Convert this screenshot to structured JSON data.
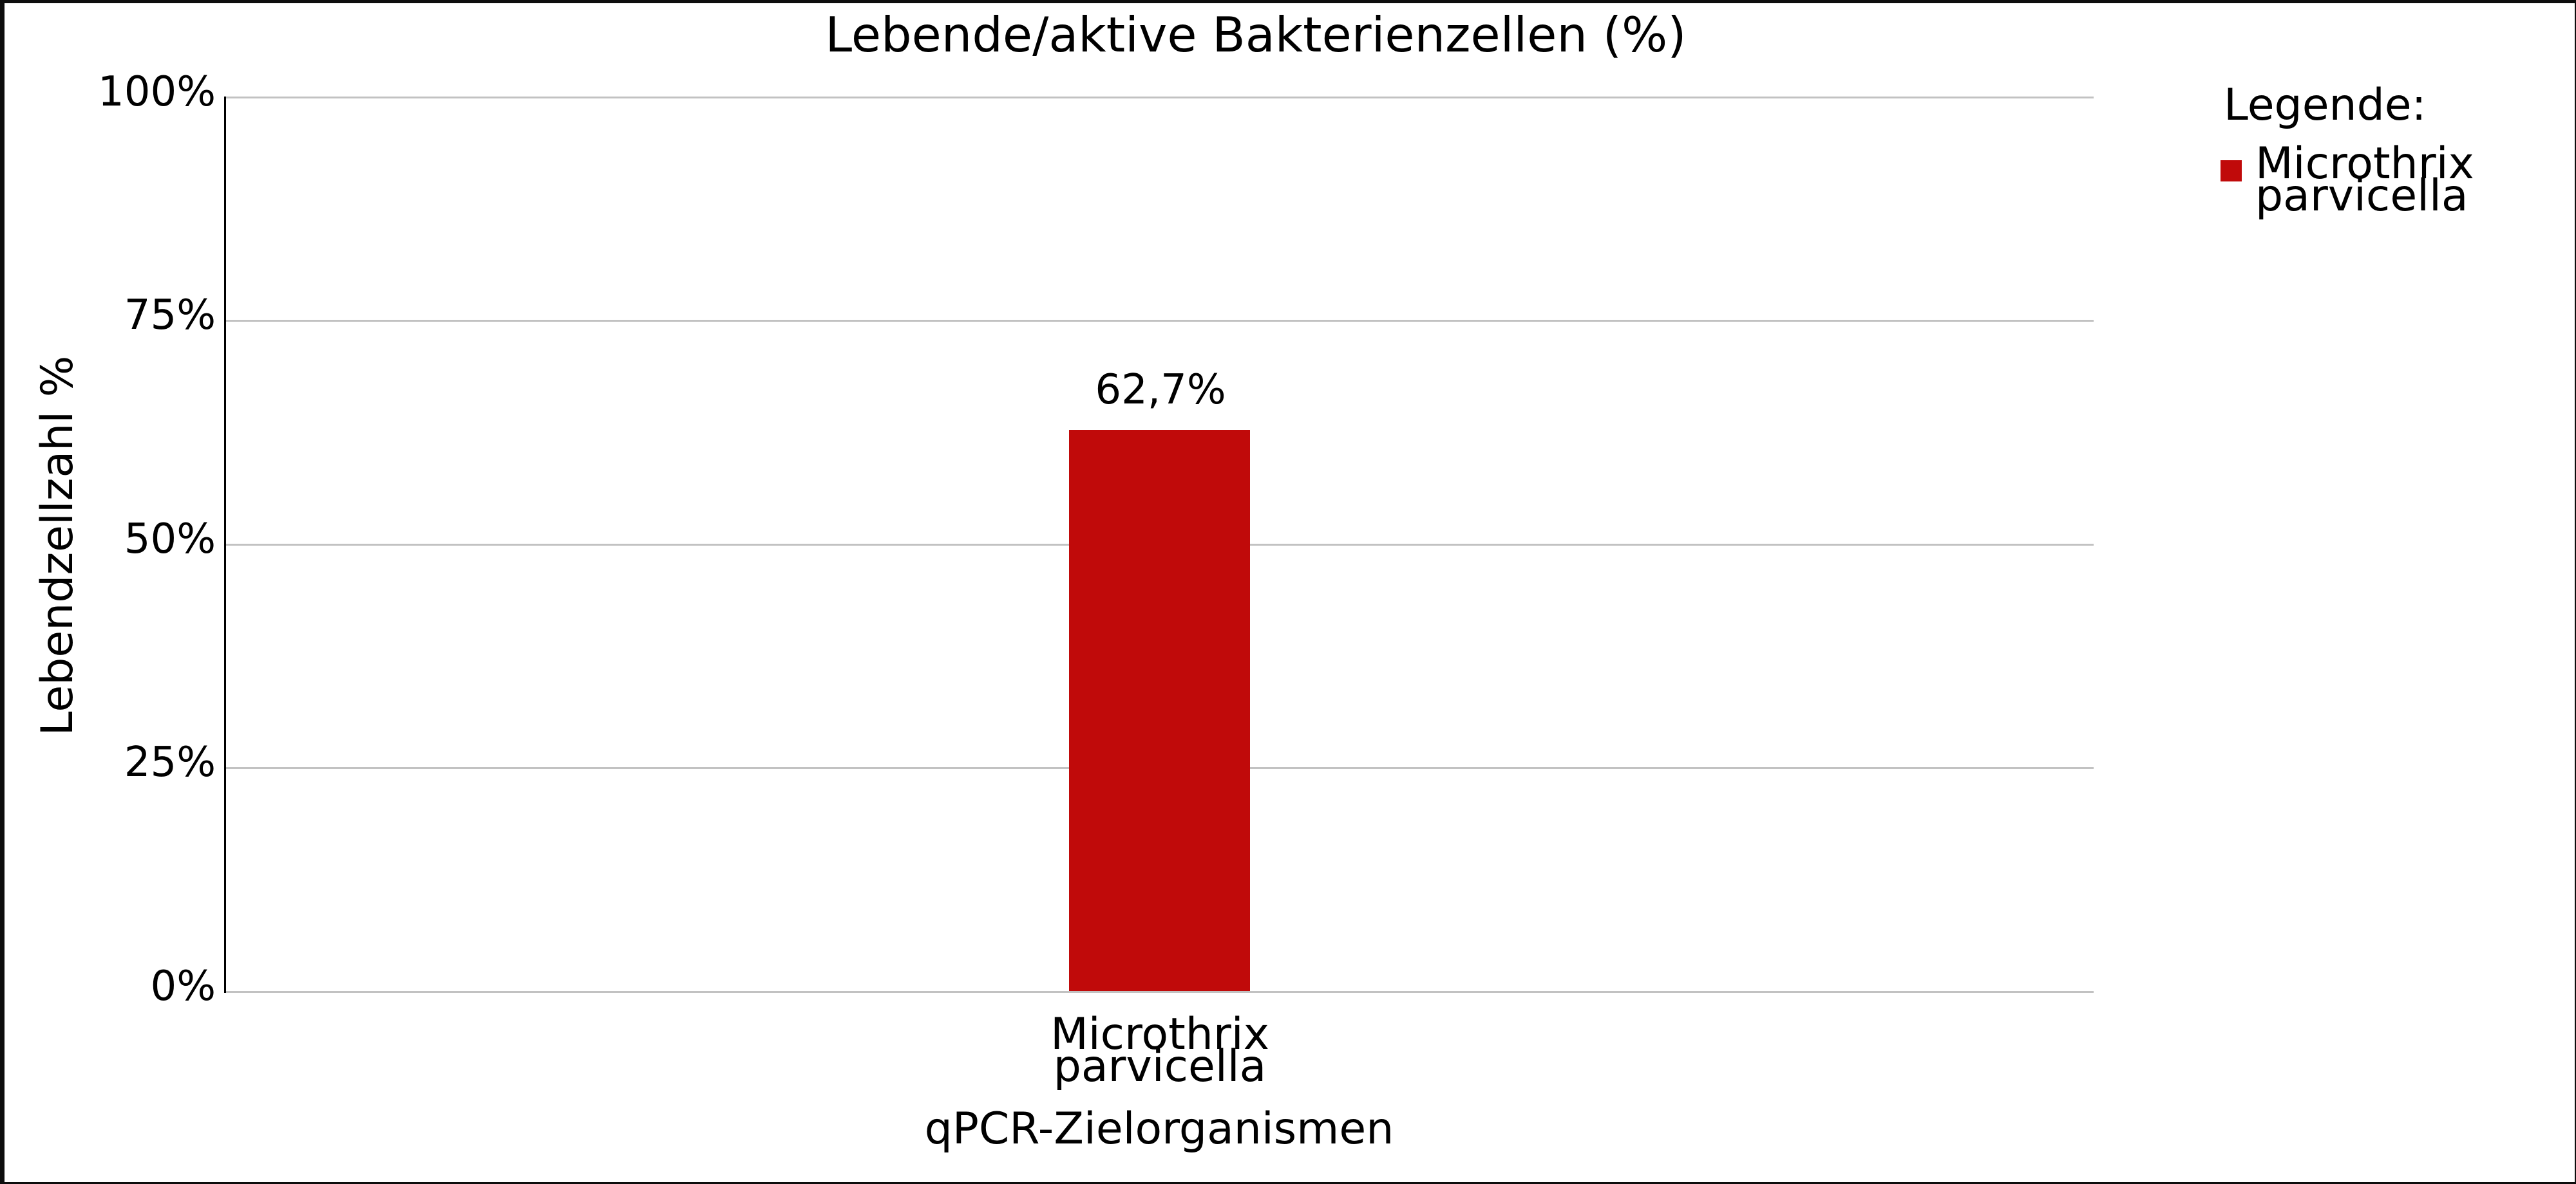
{
  "chart_data": {
    "type": "bar",
    "title": "Lebende/aktive Bakterienzellen (%)",
    "categories": [
      "Microthrix parvicella"
    ],
    "values": [
      62.7
    ],
    "value_labels": [
      "62,7%"
    ],
    "xlabel": "qPCR-Zielorganismen",
    "ylabel": "Lebendzellzahl %",
    "ylim": [
      0,
      100
    ],
    "ytick_labels": [
      "0%",
      "25%",
      "50%",
      "75%",
      "100%"
    ],
    "grid": "horizontal-gridlines-on",
    "bar_color": "#c00a0a",
    "legend_position": "right",
    "legend_title": "Legende:",
    "legend_entries": [
      {
        "label": "Microthrix parvicella",
        "color": "#c00a0a"
      }
    ]
  },
  "title": "Lebende/aktive Bakterienzellen (%)",
  "y_axis": {
    "label": "Lebendzellzahl %",
    "ticks": [
      "100%",
      "75%",
      "50%",
      "25%",
      "0%"
    ]
  },
  "x_axis": {
    "label": "qPCR-Zielorganismen",
    "category": {
      "line1": "Microthrix",
      "line2": "parvicella"
    }
  },
  "bar": {
    "value_label": "62,7%",
    "color": "#c00a0a"
  },
  "legend": {
    "heading": "Legende:",
    "item": {
      "line1": "Microthrix",
      "line2": "parvicella",
      "color": "#c00a0a"
    }
  }
}
